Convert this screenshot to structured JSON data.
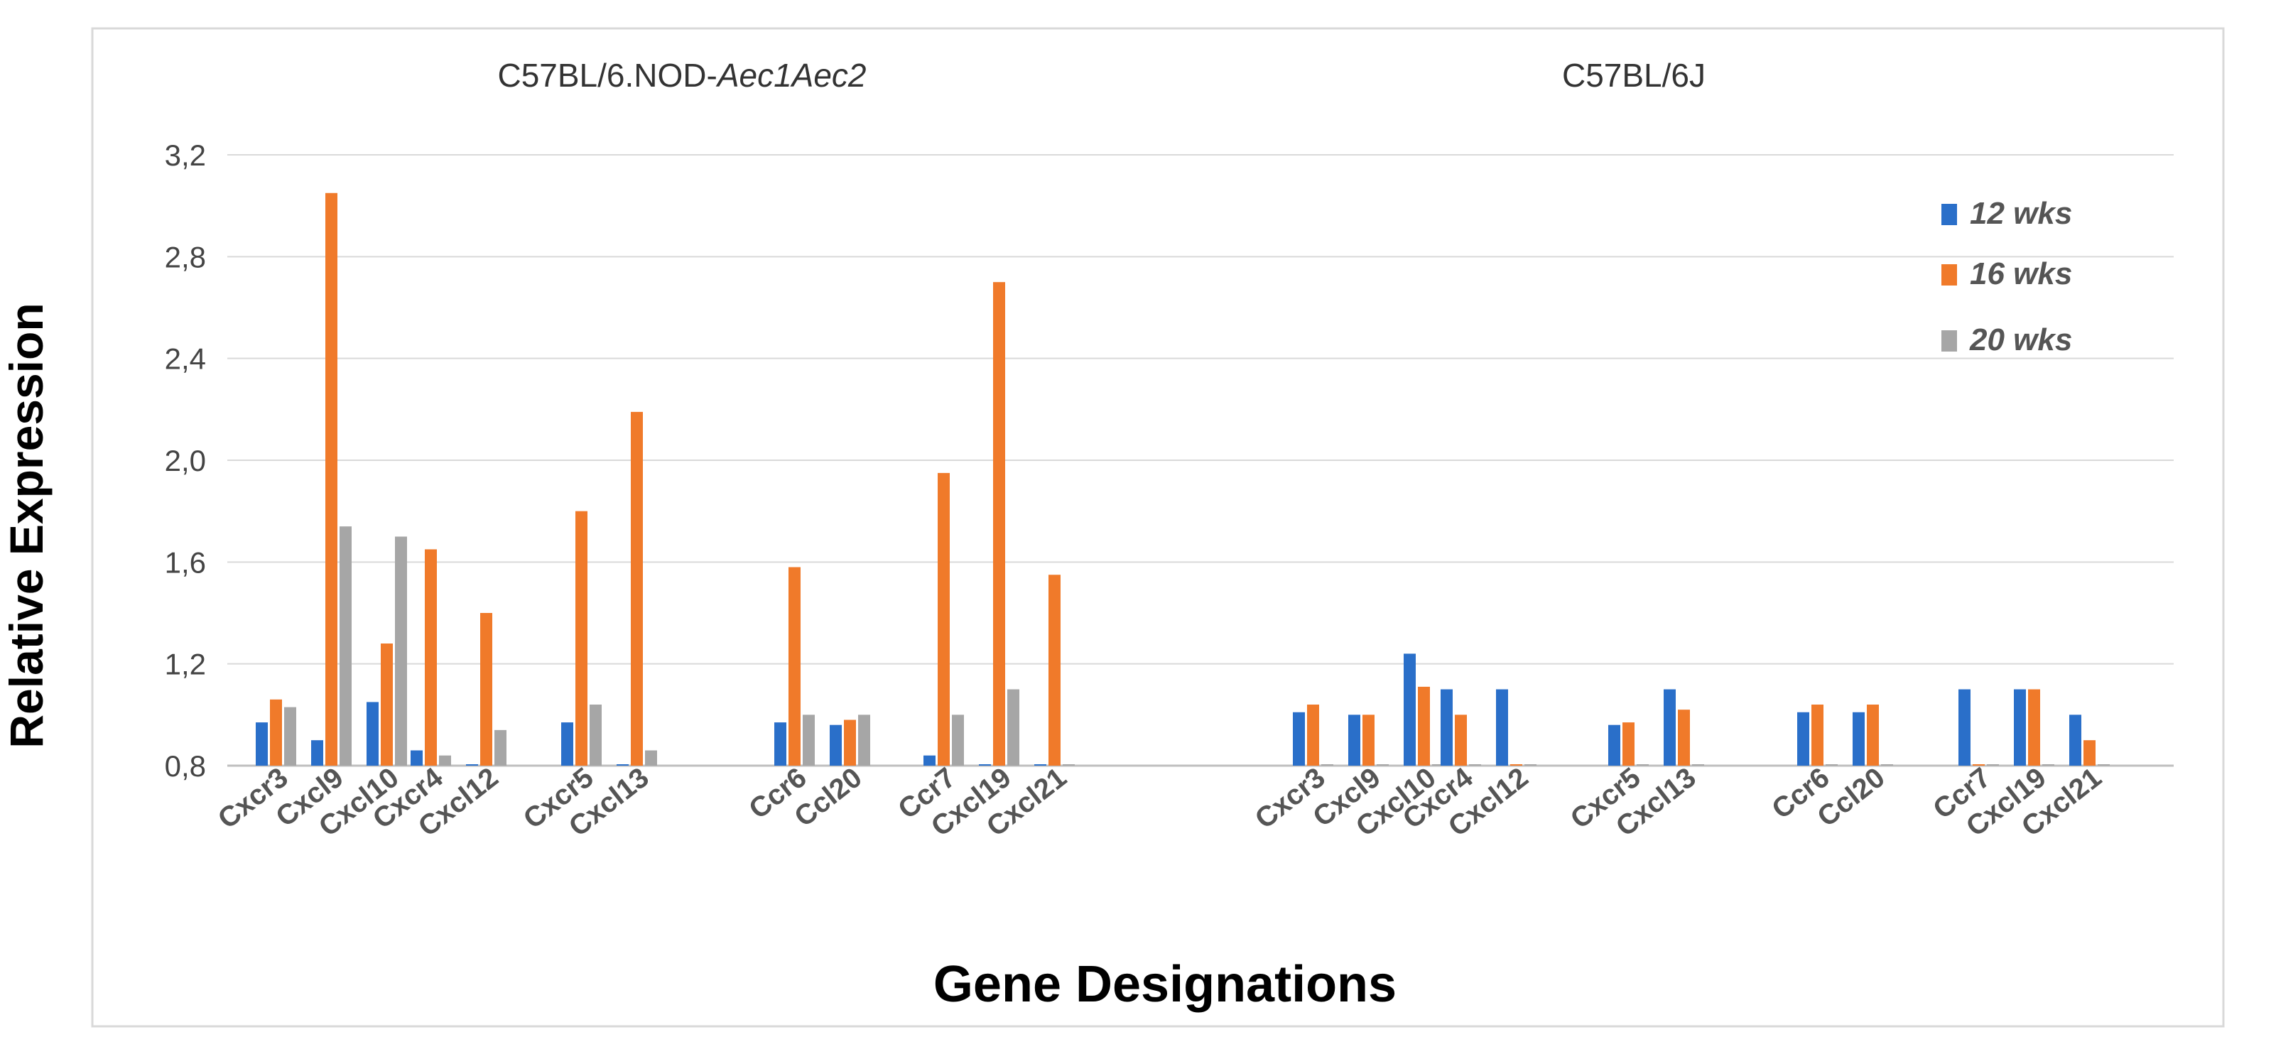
{
  "chart_data": {
    "type": "bar",
    "ylabel": "Relative Expression",
    "xlabel": "Gene Designations",
    "ylim": [
      0.8,
      3.2
    ],
    "yticks": [
      "0,8",
      "1,2",
      "1,6",
      "2,0",
      "2,4",
      "2,8",
      "3,2"
    ],
    "ytick_values": [
      0.8,
      1.2,
      1.6,
      2.0,
      2.4,
      2.8,
      3.2
    ],
    "grid": true,
    "legend_position": "top-right",
    "series": [
      {
        "name": "12 wks",
        "color": "#2a6fc9"
      },
      {
        "name": "16 wks",
        "color": "#f07a2a"
      },
      {
        "name": "20 wks",
        "color": "#a6a6a6"
      }
    ],
    "panels": [
      {
        "title_plain": "C57BL/6.NOD-",
        "title_italic": "Aec1Aec2",
        "categories": [
          "Cxcr3",
          "Cxcl9",
          "Cxcl10",
          "Cxcr4",
          "Cxcl12",
          "Cxcr5",
          "Cxcl13",
          "Ccr6",
          "Ccl20",
          "Ccr7",
          "Cxcl19",
          "Cxcl21"
        ],
        "values": [
          [
            0.97,
            1.06,
            1.03
          ],
          [
            0.9,
            3.05,
            1.74
          ],
          [
            1.05,
            1.28,
            1.7
          ],
          [
            0.86,
            1.65,
            0.84
          ],
          [
            0.8,
            1.4,
            0.94
          ],
          [
            0.97,
            1.8,
            1.04
          ],
          [
            0.8,
            2.19,
            0.86
          ],
          [
            0.97,
            1.58,
            1.0
          ],
          [
            0.96,
            0.98,
            1.0
          ],
          [
            0.84,
            1.95,
            1.0
          ],
          [
            0.8,
            2.7,
            1.1
          ],
          [
            0.8,
            1.55,
            0.8
          ]
        ]
      },
      {
        "title_plain": "C57BL/6J",
        "title_italic": "",
        "categories": [
          "Cxcr3",
          "Cxcl9",
          "Cxcl10",
          "Cxcr4",
          "Cxcl12",
          "Cxcr5",
          "Cxcl13",
          "Ccr6",
          "Ccl20",
          "Ccr7",
          "Cxcl19",
          "Cxcl21"
        ],
        "values": [
          [
            1.01,
            1.04,
            0.8
          ],
          [
            1.0,
            1.0,
            0.8
          ],
          [
            1.24,
            1.11,
            0.8
          ],
          [
            1.1,
            1.0,
            0.8
          ],
          [
            1.1,
            0.8,
            0.8
          ],
          [
            0.96,
            0.97,
            0.8
          ],
          [
            1.1,
            1.02,
            0.8
          ],
          [
            1.01,
            1.04,
            0.8
          ],
          [
            1.01,
            1.04,
            0.8
          ],
          [
            1.1,
            0.8,
            0.8
          ],
          [
            1.1,
            1.1,
            0.8
          ],
          [
            1.0,
            0.9,
            0.8
          ]
        ]
      }
    ]
  }
}
